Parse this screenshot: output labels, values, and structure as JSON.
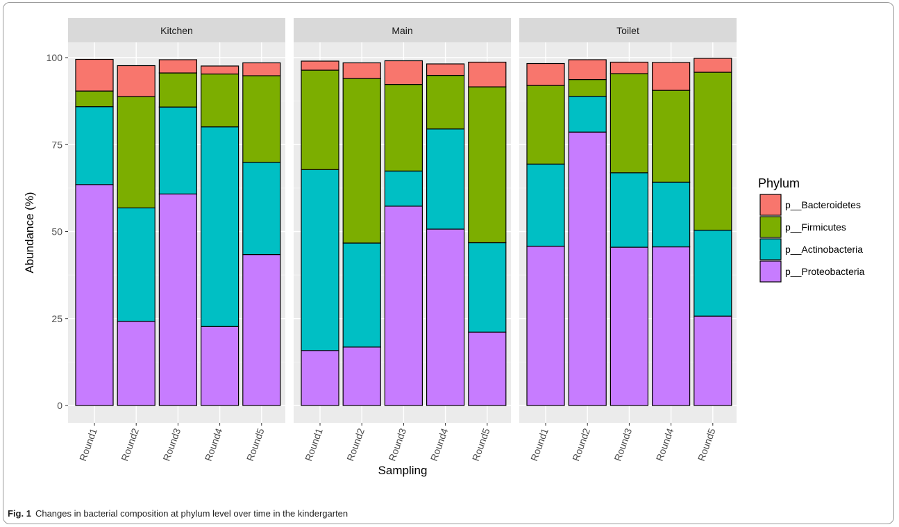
{
  "figure": {
    "caption_label": "Fig. 1",
    "caption_text": "Changes in bacterial composition at phylum level over time in the kindergarten"
  },
  "chart_data": {
    "type": "bar",
    "stacked": true,
    "facets": [
      "Kitchen",
      "Main",
      "Toilet"
    ],
    "categories": [
      "Round1",
      "Round2",
      "Round3",
      "Round4",
      "Round5"
    ],
    "xlabel": "Sampling",
    "ylabel": "Abundance (%)",
    "ylim": [
      0,
      100
    ],
    "yticks": [
      0,
      25,
      50,
      75,
      100
    ],
    "grid": true,
    "legend": {
      "title": "Phylum",
      "position": "right"
    },
    "series": [
      {
        "name": "p__Proteobacteria",
        "color": "#C77CFF",
        "values": {
          "Kitchen": [
            63.5,
            24.2,
            60.8,
            22.7,
            43.4
          ],
          "Main": [
            15.8,
            16.8,
            57.3,
            50.7,
            21.1
          ],
          "Toilet": [
            45.8,
            78.6,
            45.5,
            45.6,
            25.7
          ]
        }
      },
      {
        "name": "p__Actinobacteria",
        "color": "#00BFC4",
        "values": {
          "Kitchen": [
            22.4,
            32.6,
            25.0,
            57.4,
            26.5
          ],
          "Main": [
            52.0,
            29.9,
            10.1,
            28.8,
            25.7
          ],
          "Toilet": [
            23.6,
            10.3,
            21.4,
            18.6,
            24.7
          ]
        }
      },
      {
        "name": "p__Firmicutes",
        "color": "#7CAE00",
        "values": {
          "Kitchen": [
            4.5,
            32.0,
            9.8,
            15.2,
            24.9
          ],
          "Main": [
            28.6,
            47.3,
            24.9,
            15.4,
            44.8
          ],
          "Toilet": [
            22.6,
            4.8,
            28.5,
            26.4,
            45.4
          ]
        }
      },
      {
        "name": "p__Bacteroidetes",
        "color": "#F8766D",
        "values": {
          "Kitchen": [
            9.1,
            8.9,
            3.8,
            2.3,
            3.7
          ],
          "Main": [
            2.6,
            4.5,
            6.8,
            3.3,
            7.1
          ],
          "Toilet": [
            6.3,
            5.7,
            3.3,
            8.0,
            4.0
          ]
        }
      }
    ]
  }
}
